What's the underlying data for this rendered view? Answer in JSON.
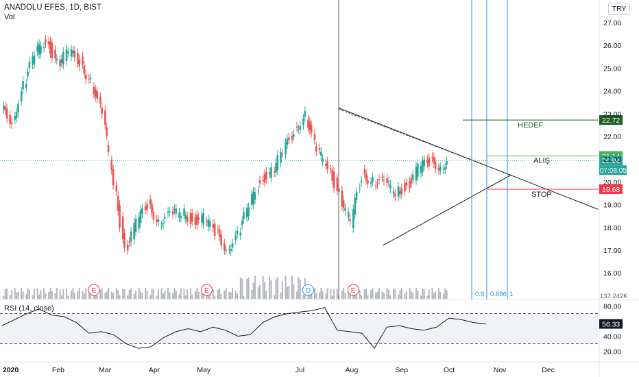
{
  "header": {
    "symbol_line": "ANADOLU EFES, 1D, BIST",
    "volume_label": "Vol",
    "currency": "TRY"
  },
  "chart_data": {
    "type": "candlestick",
    "title": "ANADOLU EFES, 1D, BIST",
    "y_axis_ticks": [
      "27.00",
      "26.00",
      "25.00",
      "24.00",
      "23.00",
      "22.00",
      "21.00",
      "20.00",
      "19.00",
      "18.00",
      "17.00",
      "16.00"
    ],
    "x_axis_ticks": [
      "2020",
      "Feb",
      "Mar",
      "Apr",
      "May",
      "Jul",
      "Aug",
      "Sep",
      "Oct",
      "Nov",
      "Dec"
    ],
    "price_series": [
      {
        "date": "2020-01-02",
        "close": 23.2
      },
      {
        "date": "2020-01-09",
        "close": 22.7
      },
      {
        "date": "2020-01-16",
        "close": 24.2
      },
      {
        "date": "2020-01-23",
        "close": 25.6
      },
      {
        "date": "2020-01-30",
        "close": 26.3
      },
      {
        "date": "2020-02-06",
        "close": 25.2
      },
      {
        "date": "2020-02-13",
        "close": 25.7
      },
      {
        "date": "2020-02-20",
        "close": 25.3
      },
      {
        "date": "2020-02-27",
        "close": 24.4
      },
      {
        "date": "2020-03-05",
        "close": 22.9
      },
      {
        "date": "2020-03-12",
        "close": 20.1
      },
      {
        "date": "2020-03-19",
        "close": 17.0
      },
      {
        "date": "2020-03-26",
        "close": 18.2
      },
      {
        "date": "2020-04-02",
        "close": 19.0
      },
      {
        "date": "2020-04-09",
        "close": 18.3
      },
      {
        "date": "2020-04-16",
        "close": 18.5
      },
      {
        "date": "2020-04-23",
        "close": 18.7
      },
      {
        "date": "2020-04-30",
        "close": 18.3
      },
      {
        "date": "2020-05-07",
        "close": 18.4
      },
      {
        "date": "2020-05-14",
        "close": 17.8
      },
      {
        "date": "2020-05-21",
        "close": 17.1
      },
      {
        "date": "2020-05-28",
        "close": 17.6
      },
      {
        "date": "2020-06-04",
        "close": 19.0
      },
      {
        "date": "2020-06-11",
        "close": 20.1
      },
      {
        "date": "2020-06-18",
        "close": 20.4
      },
      {
        "date": "2020-06-25",
        "close": 21.3
      },
      {
        "date": "2020-07-02",
        "close": 22.3
      },
      {
        "date": "2020-07-09",
        "close": 22.9
      },
      {
        "date": "2020-07-16",
        "close": 21.3
      },
      {
        "date": "2020-07-23",
        "close": 20.8
      },
      {
        "date": "2020-07-30",
        "close": 19.4
      },
      {
        "date": "2020-08-06",
        "close": 18.2
      },
      {
        "date": "2020-08-13",
        "close": 20.3
      },
      {
        "date": "2020-08-20",
        "close": 20.1
      },
      {
        "date": "2020-08-27",
        "close": 19.9
      },
      {
        "date": "2020-09-03",
        "close": 19.6
      },
      {
        "date": "2020-09-10",
        "close": 19.8
      },
      {
        "date": "2020-09-17",
        "close": 20.6
      },
      {
        "date": "2020-09-24",
        "close": 20.9
      },
      {
        "date": "2020-10-01",
        "close": 20.7
      },
      {
        "date": "2020-10-05",
        "close": 20.94
      }
    ],
    "price_levels": [
      {
        "name": "HEDEF",
        "value": 22.72,
        "color": "#1b5e20",
        "label": "22.72"
      },
      {
        "name": "ALIŞ",
        "value": 21.14,
        "color": "#4caf50",
        "label": "21.14"
      },
      {
        "name": "current",
        "value": 20.94,
        "color": "#26a69a",
        "label": "20.94",
        "countdown": "07:08:05"
      },
      {
        "name": "STOP",
        "value": 19.68,
        "color": "#f23645",
        "label": "19.68"
      }
    ],
    "annotations": [
      "HEDEF",
      "ALIŞ",
      "STOP"
    ],
    "fib_labels": [
      "0.8",
      "0.886",
      "1"
    ],
    "volume_readout": "137.242K",
    "event_markers": [
      {
        "label": "E",
        "date": "2020-02-27"
      },
      {
        "label": "E",
        "date": "2020-05-07"
      },
      {
        "label": "D",
        "date": "2020-07-09"
      },
      {
        "label": "E",
        "date": "2020-08-06"
      }
    ],
    "rsi": {
      "label": "RSI (14, close)",
      "y_axis_ticks": [
        "80.00",
        "40.00",
        "20.00"
      ],
      "current_value": "56.33",
      "bands": [
        70,
        30
      ],
      "series": [
        54,
        62,
        70,
        76,
        68,
        66,
        58,
        44,
        46,
        42,
        30,
        24,
        26,
        38,
        46,
        50,
        46,
        52,
        48,
        40,
        42,
        58,
        66,
        70,
        72,
        74,
        78,
        48,
        46,
        44,
        24,
        52,
        54,
        50,
        48,
        52,
        64,
        62,
        58,
        56.33
      ]
    }
  }
}
